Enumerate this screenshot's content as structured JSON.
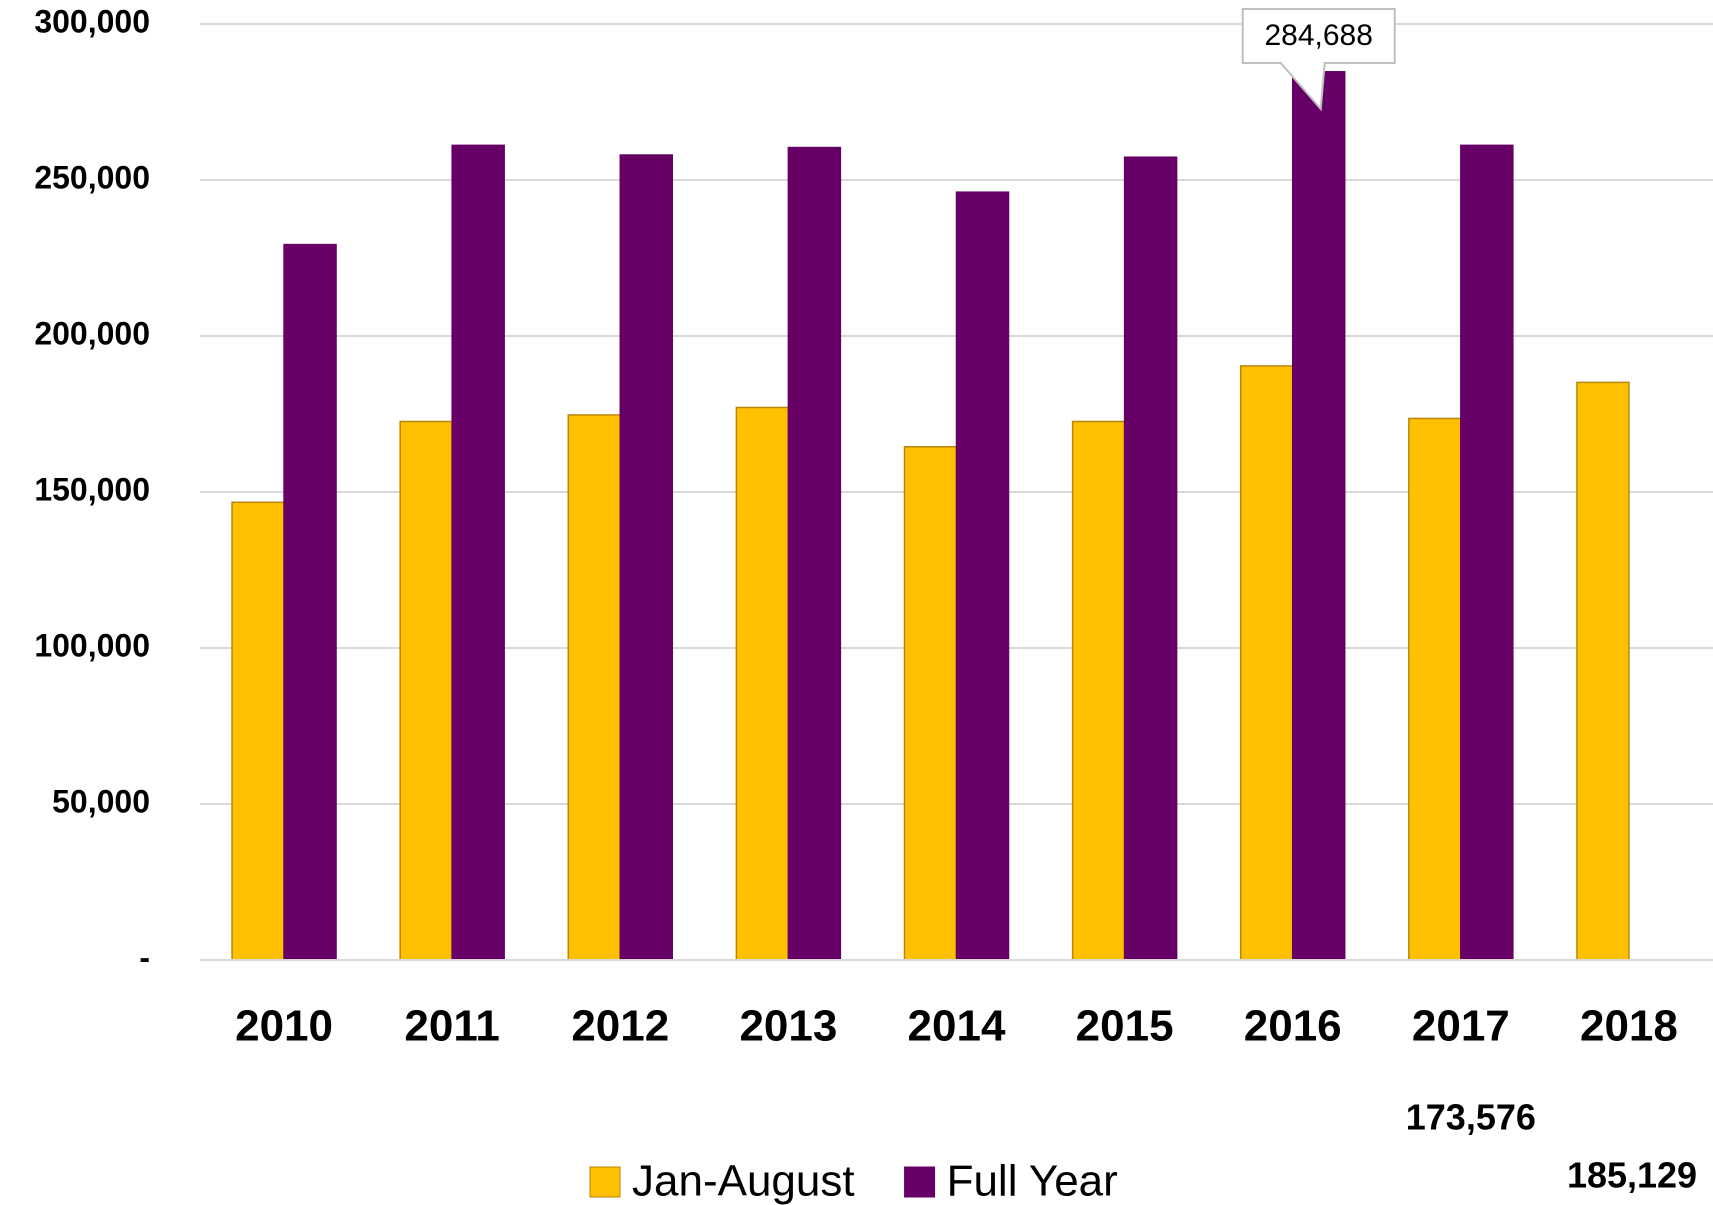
{
  "chart_data": {
    "type": "bar",
    "categories": [
      "2010",
      "2011",
      "2012",
      "2013",
      "2014",
      "2015",
      "2016",
      "2017",
      "2018"
    ],
    "series": [
      {
        "name": "Jan-August",
        "color": "#ffc000",
        "values": [
          146700,
          172600,
          174700,
          177100,
          164500,
          172600,
          190400,
          173576,
          185129
        ],
        "value_labels": [
          null,
          null,
          null,
          null,
          null,
          null,
          null,
          "173,576",
          "185,129"
        ]
      },
      {
        "name": "Full Year",
        "color": "#660066",
        "values": [
          229300,
          261100,
          258000,
          260400,
          246100,
          257300,
          284688,
          261100,
          null
        ],
        "value_labels": [
          null,
          null,
          null,
          null,
          null,
          null,
          "284,688",
          null,
          null
        ]
      }
    ],
    "ylim": [
      0,
      300000
    ],
    "yticks": [
      {
        "value": 0,
        "label": "-"
      },
      {
        "value": 50000,
        "label": "50,000"
      },
      {
        "value": 100000,
        "label": "100,000"
      },
      {
        "value": 150000,
        "label": "150,000"
      },
      {
        "value": 200000,
        "label": "200,000"
      },
      {
        "value": 250000,
        "label": "250,000"
      },
      {
        "value": 300000,
        "label": "300,000"
      }
    ],
    "grid": true,
    "legend": "bottom"
  }
}
